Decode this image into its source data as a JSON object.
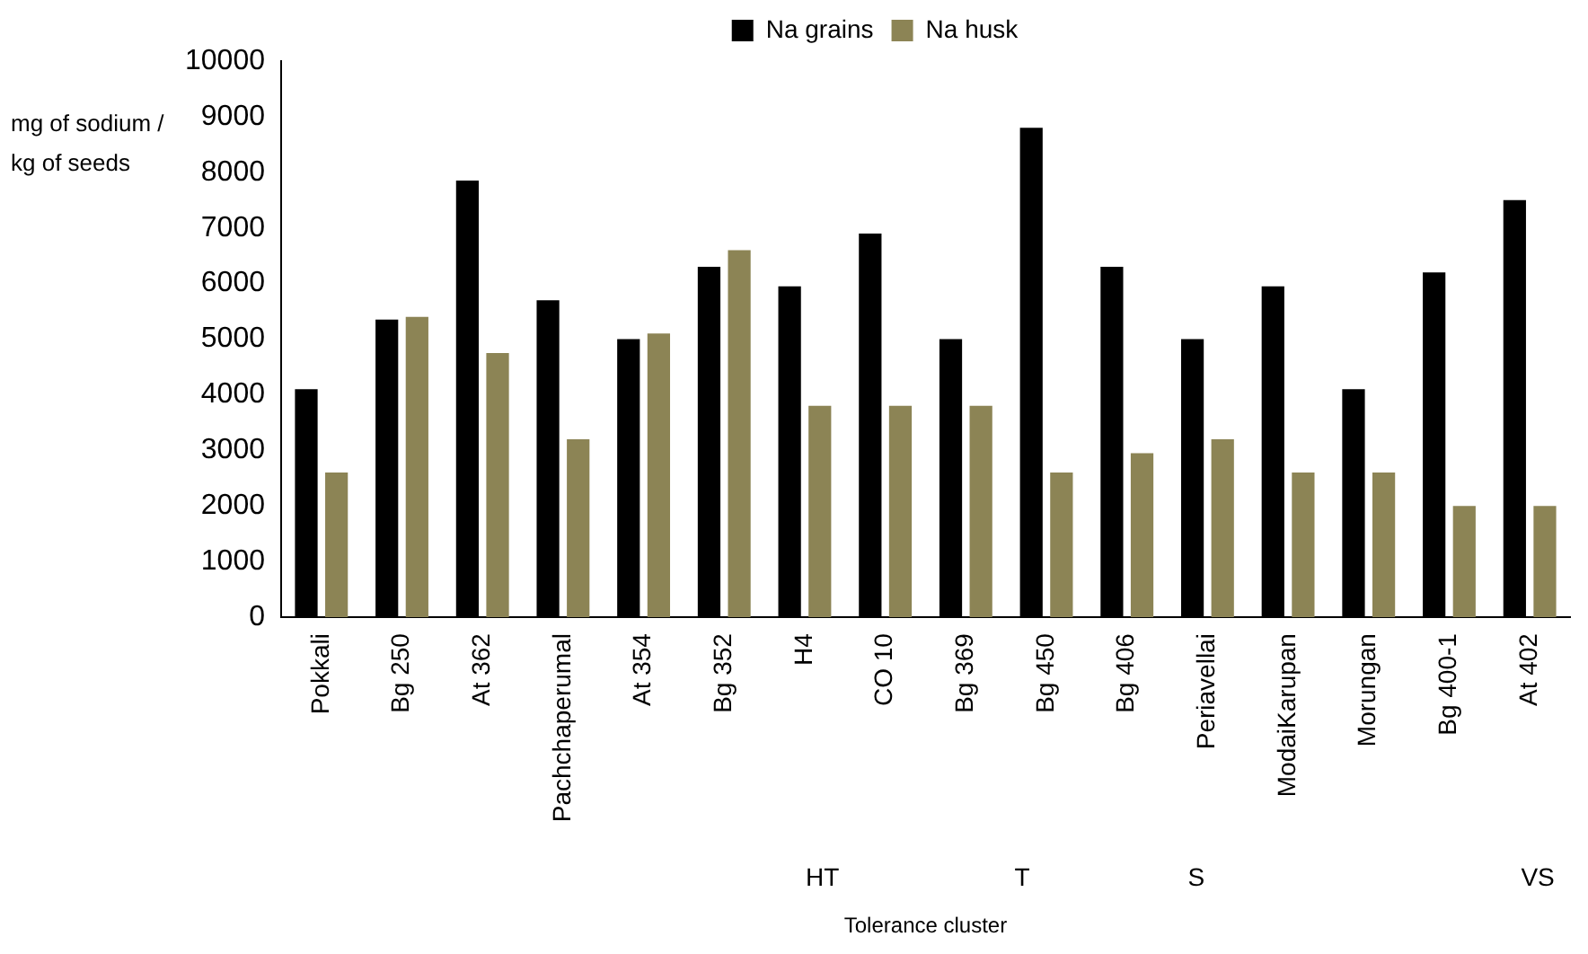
{
  "chart_data": {
    "type": "bar",
    "xlabel": "Tolerance cluster",
    "ylabel": "mg of sodium / kg of seeds",
    "categories": [
      "Pokkali",
      "Bg 250",
      "At 362",
      "Pachchaperumal",
      "At 354",
      "Bg 352",
      "H4",
      "CO 10",
      "Bg 369",
      "Bg 450",
      "Bg 406",
      "Periavellai",
      "ModaiKarupan",
      "Morungan",
      "Bg 400-1",
      "At 402"
    ],
    "series": [
      {
        "name": "Na grains",
        "color": "#000000",
        "values": [
          4100,
          5350,
          7850,
          5700,
          5000,
          6300,
          5950,
          6900,
          5000,
          8800,
          6300,
          5000,
          5950,
          4100,
          6200,
          7500
        ]
      },
      {
        "name": "Na husk",
        "color": "#8c8455",
        "values": [
          2600,
          5400,
          4750,
          3200,
          5100,
          6600,
          3800,
          3800,
          3800,
          2600,
          2950,
          3200,
          2600,
          2600,
          2000,
          2000
        ]
      }
    ],
    "ylim": [
      0,
      10000
    ],
    "yticks": [
      0,
      1000,
      2000,
      3000,
      4000,
      5000,
      6000,
      7000,
      8000,
      9000,
      10000
    ],
    "grid": false,
    "legend": "top",
    "annotations": [
      "HT",
      "T",
      "S",
      "VS"
    ]
  }
}
